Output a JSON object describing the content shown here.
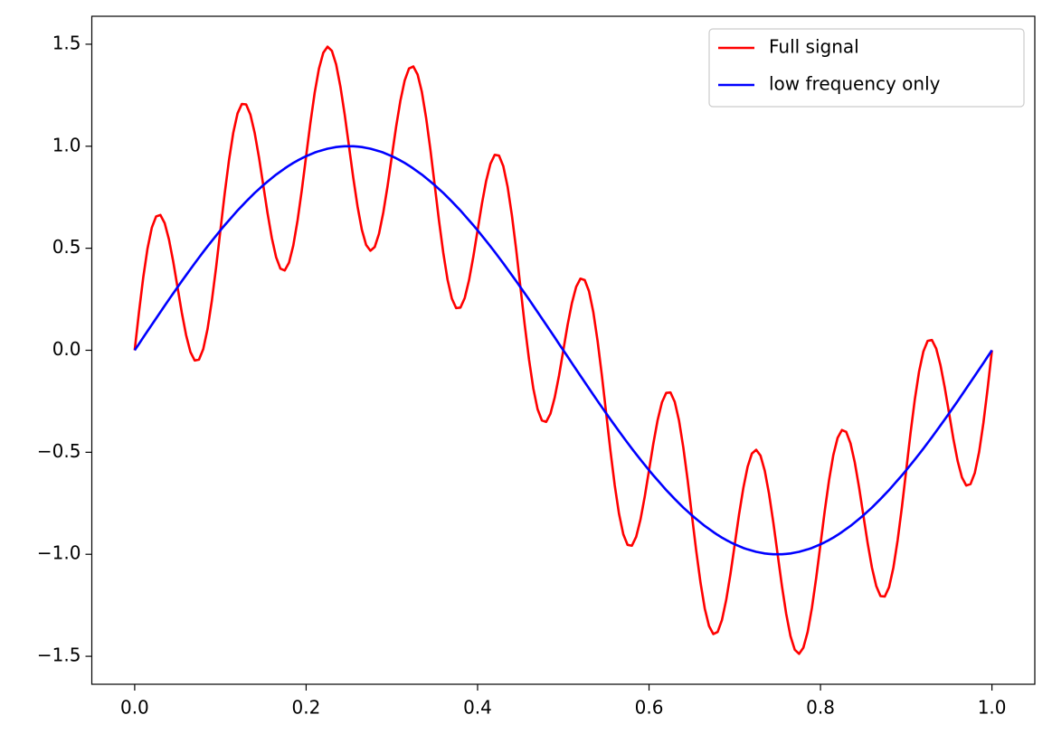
{
  "chart_data": {
    "type": "line",
    "x": [
      0,
      0.005,
      0.01,
      0.015,
      0.02,
      0.025,
      0.03,
      0.035,
      0.04,
      0.045,
      0.05,
      0.055,
      0.06,
      0.065,
      0.07,
      0.075,
      0.08,
      0.085,
      0.09,
      0.095,
      0.1,
      0.105,
      0.11,
      0.115,
      0.12,
      0.125,
      0.13,
      0.135,
      0.14,
      0.145,
      0.15,
      0.155,
      0.16,
      0.165,
      0.17,
      0.175,
      0.18,
      0.185,
      0.19,
      0.195,
      0.2,
      0.205,
      0.21,
      0.215,
      0.22,
      0.225,
      0.23,
      0.235,
      0.24,
      0.245,
      0.25,
      0.255,
      0.26,
      0.265,
      0.27,
      0.275,
      0.28,
      0.285,
      0.29,
      0.295,
      0.3,
      0.305,
      0.31,
      0.315,
      0.32,
      0.325,
      0.33,
      0.335,
      0.34,
      0.345,
      0.35,
      0.355,
      0.36,
      0.365,
      0.37,
      0.375,
      0.38,
      0.385,
      0.39,
      0.395,
      0.4,
      0.405,
      0.41,
      0.415,
      0.42,
      0.425,
      0.43,
      0.435,
      0.44,
      0.445,
      0.45,
      0.455,
      0.46,
      0.465,
      0.47,
      0.475,
      0.48,
      0.485,
      0.49,
      0.495,
      0.5,
      0.505,
      0.51,
      0.515,
      0.52,
      0.525,
      0.53,
      0.535,
      0.54,
      0.545,
      0.55,
      0.555,
      0.56,
      0.565,
      0.57,
      0.575,
      0.58,
      0.585,
      0.59,
      0.595,
      0.6,
      0.605,
      0.61,
      0.615,
      0.62,
      0.625,
      0.63,
      0.635,
      0.64,
      0.645,
      0.65,
      0.655,
      0.66,
      0.665,
      0.67,
      0.675,
      0.68,
      0.685,
      0.69,
      0.695,
      0.7,
      0.705,
      0.71,
      0.715,
      0.72,
      0.725,
      0.73,
      0.735,
      0.74,
      0.745,
      0.75,
      0.755,
      0.76,
      0.765,
      0.77,
      0.775,
      0.78,
      0.785,
      0.79,
      0.795,
      0.8,
      0.805,
      0.81,
      0.815,
      0.82,
      0.825,
      0.83,
      0.835,
      0.84,
      0.845,
      0.85,
      0.855,
      0.86,
      0.865,
      0.87,
      0.875,
      0.88,
      0.885,
      0.89,
      0.895,
      0.9,
      0.905,
      0.91,
      0.915,
      0.92,
      0.925,
      0.93,
      0.935,
      0.94,
      0.945,
      0.95,
      0.955,
      0.96,
      0.965,
      0.97,
      0.975,
      0.98,
      0.985,
      0.99,
      0.995,
      1
    ],
    "series": [
      {
        "name": "Full signal",
        "color": "#ff0000",
        "values": [
          0,
          0.186,
          0.357,
          0.499,
          0.601,
          0.656,
          0.663,
          0.623,
          0.543,
          0.434,
          0.309,
          0.184,
          0.074,
          -0.008,
          -0.05,
          -0.046,
          0.006,
          0.104,
          0.242,
          0.407,
          0.588,
          0.768,
          0.931,
          1.066,
          1.161,
          1.207,
          1.205,
          1.155,
          1.065,
          0.945,
          0.809,
          0.672,
          0.55,
          0.456,
          0.4,
          0.391,
          0.429,
          0.513,
          0.636,
          0.786,
          0.951,
          1.115,
          1.263,
          1.381,
          1.458,
          1.488,
          1.468,
          1.401,
          1.292,
          1.155,
          1,
          0.845,
          0.704,
          0.591,
          0.516,
          0.488,
          0.506,
          0.571,
          0.675,
          0.805,
          0.951,
          1.096,
          1.224,
          1.323,
          1.381,
          1.391,
          1.352,
          1.266,
          1.138,
          0.982,
          0.809,
          0.635,
          0.477,
          0.345,
          0.253,
          0.207,
          0.209,
          0.256,
          0.343,
          0.458,
          0.588,
          0.717,
          0.83,
          0.914,
          0.958,
          0.954,
          0.902,
          0.802,
          0.662,
          0.494,
          0.309,
          0.124,
          -0.045,
          -0.187,
          -0.289,
          -0.344,
          -0.351,
          -0.311,
          -0.231,
          -0.124,
          0,
          0.124,
          0.231,
          0.311,
          0.351,
          0.344,
          0.289,
          0.187,
          0.045,
          -0.124,
          -0.309,
          -0.494,
          -0.662,
          -0.802,
          -0.902,
          -0.954,
          -0.958,
          -0.914,
          -0.83,
          -0.717,
          -0.588,
          -0.458,
          -0.343,
          -0.256,
          -0.209,
          -0.207,
          -0.253,
          -0.345,
          -0.477,
          -0.635,
          -0.809,
          -0.982,
          -1.138,
          -1.266,
          -1.352,
          -1.391,
          -1.381,
          -1.323,
          -1.224,
          -1.096,
          -0.951,
          -0.805,
          -0.675,
          -0.571,
          -0.506,
          -0.488,
          -0.516,
          -0.591,
          -0.704,
          -0.845,
          -1,
          -1.155,
          -1.292,
          -1.401,
          -1.468,
          -1.488,
          -1.458,
          -1.381,
          -1.263,
          -1.115,
          -0.951,
          -0.786,
          -0.636,
          -0.513,
          -0.429,
          -0.391,
          -0.4,
          -0.456,
          -0.55,
          -0.672,
          -0.809,
          -0.945,
          -1.065,
          -1.155,
          -1.205,
          -1.207,
          -1.161,
          -1.066,
          -0.931,
          -0.768,
          -0.588,
          -0.407,
          -0.242,
          -0.104,
          -0.006,
          0.046,
          0.05,
          0.008,
          -0.074,
          -0.184,
          -0.309,
          -0.434,
          -0.543,
          -0.623,
          -0.663,
          -0.656,
          -0.601,
          -0.499,
          -0.357,
          -0.186,
          0
        ]
      },
      {
        "name": "low frequency only",
        "color": "#0000ff",
        "values": [
          0,
          0.031,
          0.063,
          0.094,
          0.125,
          0.156,
          0.187,
          0.218,
          0.249,
          0.279,
          0.309,
          0.339,
          0.368,
          0.397,
          0.426,
          0.454,
          0.482,
          0.509,
          0.536,
          0.562,
          0.588,
          0.613,
          0.637,
          0.661,
          0.685,
          0.707,
          0.729,
          0.75,
          0.771,
          0.79,
          0.809,
          0.827,
          0.844,
          0.861,
          0.876,
          0.891,
          0.905,
          0.918,
          0.93,
          0.941,
          0.951,
          0.96,
          0.969,
          0.976,
          0.982,
          0.988,
          0.992,
          0.996,
          0.998,
          1,
          1,
          1,
          0.998,
          0.996,
          0.992,
          0.988,
          0.982,
          0.976,
          0.969,
          0.96,
          0.951,
          0.941,
          0.93,
          0.918,
          0.905,
          0.891,
          0.876,
          0.861,
          0.844,
          0.827,
          0.809,
          0.79,
          0.771,
          0.75,
          0.729,
          0.707,
          0.685,
          0.661,
          0.637,
          0.613,
          0.588,
          0.562,
          0.536,
          0.509,
          0.482,
          0.454,
          0.426,
          0.397,
          0.368,
          0.339,
          0.309,
          0.279,
          0.249,
          0.218,
          0.187,
          0.156,
          0.125,
          0.094,
          0.063,
          0.031,
          0,
          -0.031,
          -0.063,
          -0.094,
          -0.125,
          -0.156,
          -0.187,
          -0.218,
          -0.249,
          -0.279,
          -0.309,
          -0.339,
          -0.368,
          -0.397,
          -0.426,
          -0.454,
          -0.482,
          -0.509,
          -0.536,
          -0.562,
          -0.588,
          -0.613,
          -0.637,
          -0.661,
          -0.685,
          -0.707,
          -0.729,
          -0.75,
          -0.771,
          -0.79,
          -0.809,
          -0.827,
          -0.844,
          -0.861,
          -0.876,
          -0.891,
          -0.905,
          -0.918,
          -0.93,
          -0.941,
          -0.951,
          -0.96,
          -0.969,
          -0.976,
          -0.982,
          -0.988,
          -0.992,
          -0.996,
          -0.998,
          -1,
          -1,
          -1,
          -0.998,
          -0.996,
          -0.992,
          -0.988,
          -0.982,
          -0.976,
          -0.969,
          -0.96,
          -0.951,
          -0.941,
          -0.93,
          -0.918,
          -0.905,
          -0.891,
          -0.876,
          -0.861,
          -0.844,
          -0.827,
          -0.809,
          -0.79,
          -0.771,
          -0.75,
          -0.729,
          -0.707,
          -0.685,
          -0.661,
          -0.637,
          -0.613,
          -0.588,
          -0.562,
          -0.536,
          -0.509,
          -0.482,
          -0.454,
          -0.426,
          -0.397,
          -0.368,
          -0.339,
          -0.309,
          -0.279,
          -0.249,
          -0.218,
          -0.187,
          -0.156,
          -0.125,
          -0.094,
          -0.063,
          -0.031,
          0
        ]
      }
    ],
    "xlim": [
      -0.05,
      1.05
    ],
    "xticks": [
      {
        "value": 0,
        "label": "0.0"
      },
      0.2,
      0.4,
      0.6,
      0.8,
      {
        "value": 1,
        "label": "1.0"
      }
    ],
    "ylim": [
      -1.637,
      1.637
    ],
    "yticks": [
      {
        "value": -1.5,
        "label": "−1.5"
      },
      {
        "value": -1,
        "label": "−1.0"
      },
      {
        "value": -0.5,
        "label": "−0.5"
      },
      {
        "value": 0,
        "label": "0.0"
      },
      0.5,
      {
        "value": 1,
        "label": "1.0"
      },
      1.5
    ],
    "grid": false,
    "legend": "upper right"
  }
}
